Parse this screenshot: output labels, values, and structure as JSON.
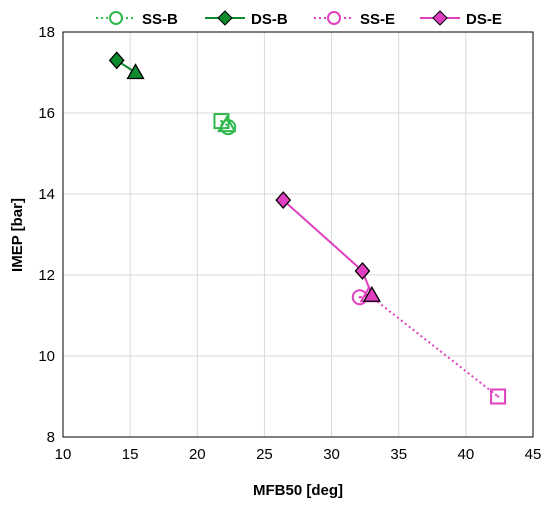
{
  "chart_data": {
    "type": "scatter",
    "title": "",
    "xlabel": "MFB50 [deg]",
    "ylabel": "IMEP [bar]",
    "xlim": [
      10,
      45
    ],
    "ylim": [
      8,
      18
    ],
    "xticks": [
      10,
      15,
      20,
      25,
      30,
      35,
      40,
      45
    ],
    "yticks": [
      8,
      10,
      12,
      14,
      16,
      18
    ],
    "grid": true,
    "legend_position": "top",
    "series": [
      {
        "name": "SS-B",
        "color": "#2eb84c",
        "line": "dotted",
        "filled": false,
        "points": [
          {
            "x": 21.8,
            "y": 15.8,
            "marker": "square"
          },
          {
            "x": 22.2,
            "y": 15.7,
            "marker": "triangle"
          },
          {
            "x": 22.3,
            "y": 15.65,
            "marker": "circle"
          }
        ]
      },
      {
        "name": "DS-B",
        "color": "#0e8a2e",
        "line": "solid",
        "filled": true,
        "points": [
          {
            "x": 14.0,
            "y": 17.3,
            "marker": "diamond"
          },
          {
            "x": 15.4,
            "y": 17.0,
            "marker": "triangle"
          }
        ]
      },
      {
        "name": "SS-E",
        "color": "#e040c0",
        "line": "dotted",
        "filled": false,
        "points": [
          {
            "x": 32.1,
            "y": 11.45,
            "marker": "circle"
          },
          {
            "x": 32.8,
            "y": 11.5,
            "marker": "triangle"
          },
          {
            "x": 42.4,
            "y": 9.0,
            "marker": "square"
          }
        ]
      },
      {
        "name": "DS-E",
        "color": "#e040c0",
        "line": "solid",
        "filled": true,
        "points": [
          {
            "x": 26.4,
            "y": 13.85,
            "marker": "diamond"
          },
          {
            "x": 32.3,
            "y": 12.1,
            "marker": "diamond"
          },
          {
            "x": 33.0,
            "y": 11.5,
            "marker": "triangle"
          }
        ]
      }
    ]
  }
}
